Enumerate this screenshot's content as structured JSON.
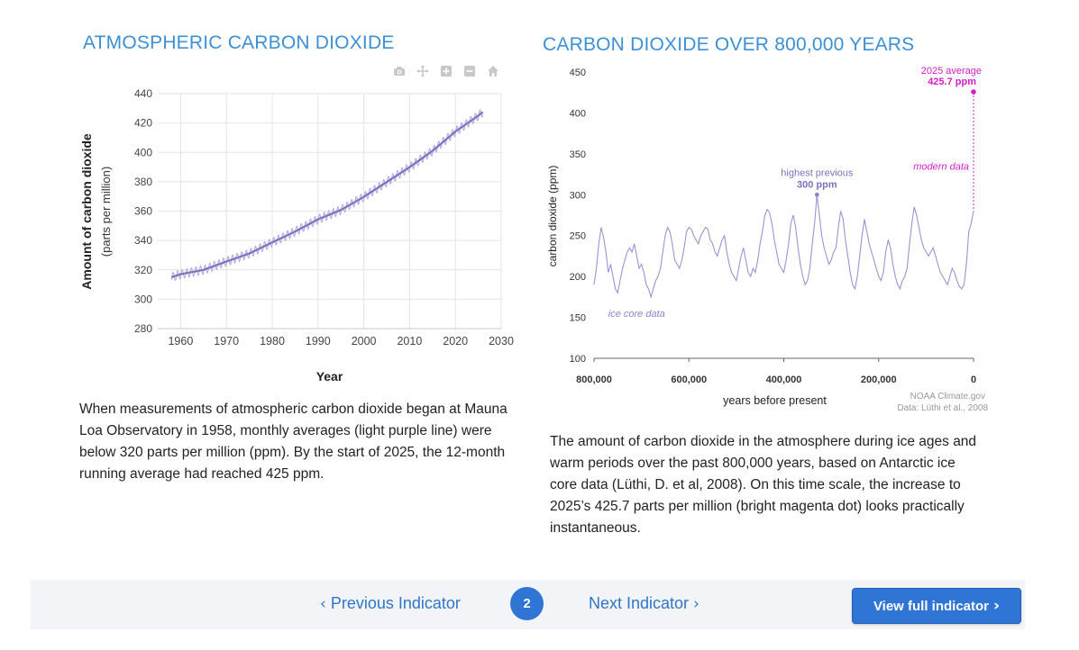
{
  "left_panel": {
    "title": "ATMOSPHERIC CARBON DIOXIDE",
    "description": "When measurements of atmospheric carbon dioxide began at Mauna Loa Observatory in 1958, monthly averages (light purple line) were below 320 parts per million (ppm). By the start of 2025, the 12-month running average had reached 425 ppm.",
    "toolbar": [
      "camera-icon",
      "pan-icon",
      "zoom-in-icon",
      "zoom-out-icon",
      "home-icon"
    ]
  },
  "right_panel": {
    "title": "CARBON DIOXIDE OVER 800,000 YEARS",
    "description": "The amount of carbon dioxide in the atmosphere during ice ages and warm periods over the past 800,000 years, based on Antarctic ice core data (Lüthi, D. et al, 2008). On this time scale, the increase to 2025’s 425.7 parts per million (bright magenta dot) looks practically instantaneous."
  },
  "nav": {
    "prev_label": "Previous Indicator",
    "next_label": "Next Indicator",
    "page": "2",
    "full_label": "View full indicator"
  },
  "colors": {
    "title": "#3d8fd6",
    "monthly_line": "#b9b1de",
    "running_avg_line": "#7d72bd",
    "ice_core_line": "#9b93d3",
    "modern_magenta": "#d21fc6",
    "button": "#2f75d6"
  },
  "chart_data": [
    {
      "type": "line",
      "xlabel": "Year",
      "ylabel": "Amount of carbon dioxide",
      "ylabel_sub": "(parts per million)",
      "xlim": [
        1955,
        2030
      ],
      "ylim": [
        280,
        440
      ],
      "x_ticks": [
        1960,
        1970,
        1980,
        1990,
        2000,
        2010,
        2020,
        2030
      ],
      "y_ticks": [
        280,
        300,
        320,
        340,
        360,
        380,
        400,
        420,
        440
      ],
      "grid": true,
      "seasonal_amplitude_ppm": 3,
      "series": [
        {
          "x": [
            1958,
            1960,
            1965,
            1970,
            1975,
            1980,
            1985,
            1990,
            1995,
            2000,
            2005,
            2010,
            2015,
            2020,
            2025,
            2026
          ],
          "values": [
            315,
            317,
            320,
            325.7,
            331.1,
            338.7,
            346.1,
            354.4,
            360.8,
            369.7,
            379.8,
            389.9,
            401,
            414.2,
            425,
            427.5
          ]
        }
      ]
    },
    {
      "type": "line",
      "xlabel": "years before present",
      "ylabel": "carbon dioxide (ppm)",
      "x_reversed": true,
      "xlim": [
        800000,
        0
      ],
      "ylim": [
        100,
        450
      ],
      "x_ticks": [
        800000,
        600000,
        400000,
        200000,
        0
      ],
      "x_tick_labels": [
        "800,000",
        "600,000",
        "400,000",
        "200,000",
        "0"
      ],
      "y_ticks": [
        100,
        150,
        200,
        250,
        300,
        350,
        400,
        450
      ],
      "grid": false,
      "series": [
        {
          "x": [
            800000,
            795000,
            790000,
            785000,
            780000,
            775000,
            770000,
            765000,
            760000,
            755000,
            750000,
            745000,
            740000,
            735000,
            730000,
            725000,
            720000,
            715000,
            710000,
            705000,
            700000,
            695000,
            690000,
            685000,
            680000,
            675000,
            670000,
            665000,
            660000,
            655000,
            650000,
            645000,
            640000,
            635000,
            630000,
            625000,
            620000,
            615000,
            610000,
            605000,
            600000,
            595000,
            590000,
            585000,
            580000,
            575000,
            570000,
            565000,
            560000,
            555000,
            550000,
            545000,
            540000,
            535000,
            530000,
            525000,
            520000,
            515000,
            510000,
            505000,
            500000,
            495000,
            490000,
            485000,
            480000,
            475000,
            470000,
            465000,
            460000,
            455000,
            450000,
            445000,
            440000,
            435000,
            430000,
            425000,
            420000,
            415000,
            410000,
            405000,
            400000,
            395000,
            390000,
            385000,
            380000,
            375000,
            370000,
            365000,
            360000,
            355000,
            350000,
            345000,
            340000,
            335000,
            330000,
            325000,
            320000,
            315000,
            310000,
            305000,
            300000,
            295000,
            290000,
            285000,
            280000,
            275000,
            270000,
            265000,
            260000,
            255000,
            250000,
            245000,
            240000,
            235000,
            230000,
            225000,
            220000,
            215000,
            210000,
            205000,
            200000,
            195000,
            190000,
            185000,
            180000,
            175000,
            170000,
            165000,
            160000,
            155000,
            150000,
            145000,
            140000,
            135000,
            130000,
            125000,
            120000,
            115000,
            110000,
            105000,
            100000,
            95000,
            90000,
            85000,
            80000,
            75000,
            70000,
            65000,
            60000,
            55000,
            50000,
            45000,
            40000,
            35000,
            30000,
            25000,
            20000,
            15000,
            10000,
            5000,
            0
          ],
          "values": [
            190,
            210,
            240,
            260,
            248,
            230,
            205,
            215,
            200,
            185,
            180,
            195,
            210,
            220,
            230,
            235,
            230,
            240,
            225,
            210,
            215,
            205,
            190,
            185,
            175,
            185,
            195,
            200,
            210,
            230,
            250,
            260,
            255,
            240,
            220,
            215,
            210,
            220,
            235,
            255,
            260,
            258,
            250,
            245,
            240,
            250,
            255,
            260,
            258,
            245,
            240,
            230,
            225,
            235,
            245,
            250,
            230,
            215,
            205,
            200,
            195,
            210,
            225,
            235,
            220,
            205,
            200,
            210,
            205,
            220,
            240,
            255,
            275,
            282,
            278,
            265,
            245,
            230,
            215,
            210,
            205,
            220,
            240,
            265,
            275,
            260,
            235,
            215,
            200,
            190,
            195,
            210,
            240,
            265,
            300,
            275,
            250,
            235,
            225,
            215,
            220,
            230,
            235,
            260,
            280,
            270,
            245,
            225,
            205,
            190,
            185,
            200,
            225,
            250,
            270,
            255,
            240,
            230,
            220,
            210,
            200,
            195,
            205,
            230,
            245,
            235,
            215,
            200,
            190,
            185,
            195,
            200,
            210,
            240,
            265,
            285,
            275,
            260,
            245,
            235,
            230,
            225,
            230,
            235,
            225,
            215,
            205,
            200,
            195,
            190,
            200,
            210,
            205,
            195,
            188,
            185,
            190,
            215,
            255,
            265,
            280
          ]
        }
      ],
      "annotations": {
        "highest_label": "highest previous",
        "highest_value": "300 ppm",
        "highest_point": {
          "x": 330000,
          "y": 300
        },
        "modern_title": "2025 average",
        "modern_value": "425.7 ppm",
        "modern_point": {
          "x": 0,
          "y": 425.7
        },
        "modern_data_label": "modern data",
        "ice_core_label": "ice core data",
        "credit_line1": "NOAA Climate.gov",
        "credit_line2": "Data: Lüthi et al., 2008"
      }
    }
  ]
}
